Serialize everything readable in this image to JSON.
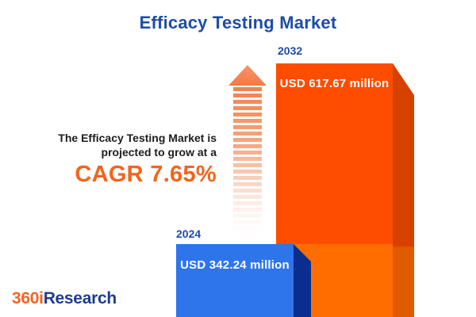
{
  "title": "Efficacy Testing Market",
  "statement": {
    "line1": "The Efficacy Testing Market is",
    "line2": "projected to grow at a",
    "cagr_label": "CAGR 7.65%"
  },
  "bars": [
    {
      "year": "2024",
      "value_label": "USD 342.24 million",
      "face_color": "#2E75EB",
      "side_color": "#0A2E90"
    },
    {
      "year": "2032",
      "value_label": "USD 617.67 million",
      "face_color": "#FF4D00",
      "face_color_lower": "#FF6D00",
      "side_color": "#D64100",
      "side_color_lower": "#E05A00"
    }
  ],
  "logo": {
    "part1": "360i",
    "part2": "Research",
    "part1_color": "#F26522",
    "part2_color": "#1F3D8F"
  },
  "colors": {
    "title": "#1D4CA8",
    "statement_text": "#1D1D1D",
    "cagr": "#F4641C",
    "arrow": "#F2814B",
    "background": "#FFFFFF"
  },
  "chart_data": {
    "type": "bar",
    "title": "Efficacy Testing Market",
    "categories": [
      "2024",
      "2032"
    ],
    "values": [
      342.24,
      617.67
    ],
    "unit": "USD million",
    "value_labels": [
      "USD 342.24 million",
      "USD 617.67 million"
    ],
    "cagr_percent": 7.65,
    "bar_colors": [
      "#2E75EB",
      "#FF4D00"
    ],
    "xlabel": "",
    "ylabel": "",
    "grid": false,
    "legend_position": "none",
    "annotation": "The Efficacy Testing Market is projected to grow at a CAGR 7.65%"
  }
}
